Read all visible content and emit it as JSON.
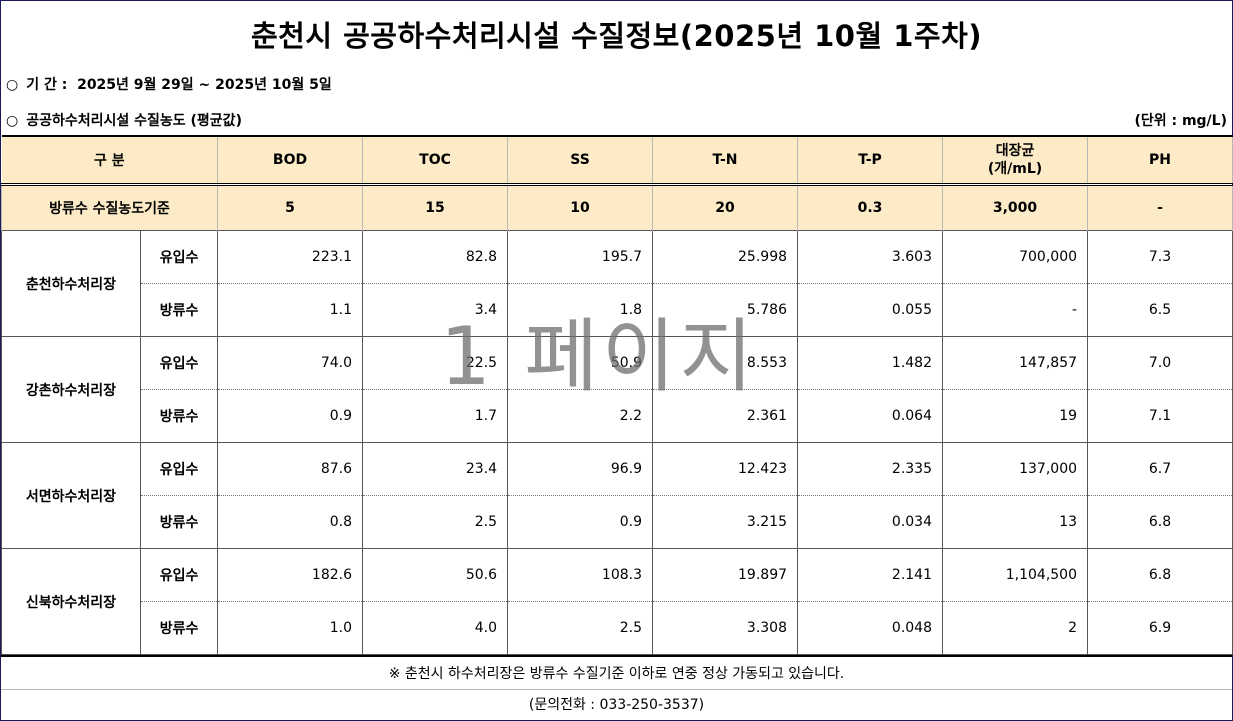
{
  "title": "춘천시 공공하수처리시설 수질정보(2025년 10월 1주차)",
  "period": {
    "bullet": "○",
    "label": "기 간 :",
    "value": "2025년 9월 29일 ~ 2025년 10월 5일"
  },
  "section": {
    "bullet": "○",
    "label": "공공하수처리시설 수질농도 (평균값)",
    "unit": "(단위 : mg/L)"
  },
  "table": {
    "header": {
      "division": "구 분",
      "columns": [
        "BOD",
        "TOC",
        "SS",
        "T-N",
        "T-P",
        "대장균",
        "PH"
      ],
      "coliform_unit": "(개/mL)"
    },
    "standard": {
      "label": "방류수 수질농도기준",
      "values": [
        "5",
        "15",
        "10",
        "20",
        "0.3",
        "3,000",
        "-"
      ]
    },
    "plants": [
      {
        "name": "춘천하수처리장",
        "rows": [
          {
            "kind": "유입수",
            "values": [
              "223.1",
              "82.8",
              "195.7",
              "25.998",
              "3.603",
              "700,000",
              "7.3"
            ]
          },
          {
            "kind": "방류수",
            "values": [
              "1.1",
              "3.4",
              "1.8",
              "5.786",
              "0.055",
              "-",
              "6.5"
            ]
          }
        ]
      },
      {
        "name": "강촌하수처리장",
        "rows": [
          {
            "kind": "유입수",
            "values": [
              "74.0",
              "22.5",
              "50.9",
              "8.553",
              "1.482",
              "147,857",
              "7.0"
            ]
          },
          {
            "kind": "방류수",
            "values": [
              "0.9",
              "1.7",
              "2.2",
              "2.361",
              "0.064",
              "19",
              "7.1"
            ]
          }
        ]
      },
      {
        "name": "서면하수처리장",
        "rows": [
          {
            "kind": "유입수",
            "values": [
              "87.6",
              "23.4",
              "96.9",
              "12.423",
              "2.335",
              "137,000",
              "6.7"
            ]
          },
          {
            "kind": "방류수",
            "values": [
              "0.8",
              "2.5",
              "0.9",
              "3.215",
              "0.034",
              "13",
              "6.8"
            ]
          }
        ]
      },
      {
        "name": "신북하수처리장",
        "rows": [
          {
            "kind": "유입수",
            "values": [
              "182.6",
              "50.6",
              "108.3",
              "19.897",
              "2.141",
              "1,104,500",
              "6.8"
            ]
          },
          {
            "kind": "방류수",
            "values": [
              "1.0",
              "4.0",
              "2.5",
              "3.308",
              "0.048",
              "2",
              "6.9"
            ]
          }
        ]
      }
    ]
  },
  "footnote": "※ 춘천시 하수처리장은 방류수 수질기준 이하로 연중 정상 가동되고 있습니다.",
  "contact": "(문의전화 : 033-250-3537)",
  "watermark": "1 페이지"
}
